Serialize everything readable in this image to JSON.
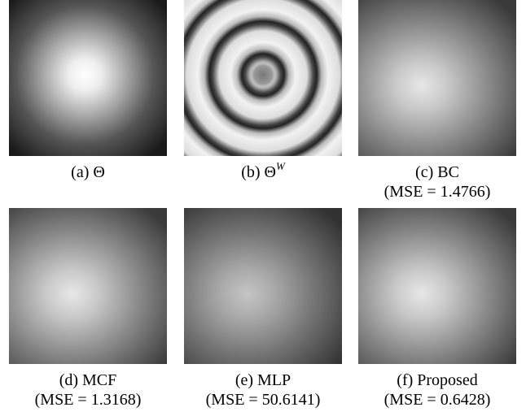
{
  "panels": [
    {
      "label": "(a) Θ"
    },
    {
      "label": "(b) Θ",
      "superscript": "W"
    },
    {
      "label": "(c) BC",
      "mse": "(MSE = 1.4766)"
    },
    {
      "label": "(d) MCF",
      "mse": "(MSE = 1.3168)"
    },
    {
      "label": "(e) MLP",
      "mse": "(MSE = 50.6141)"
    },
    {
      "label": "(f) Proposed",
      "mse": "(MSE = 0.6428)"
    }
  ]
}
